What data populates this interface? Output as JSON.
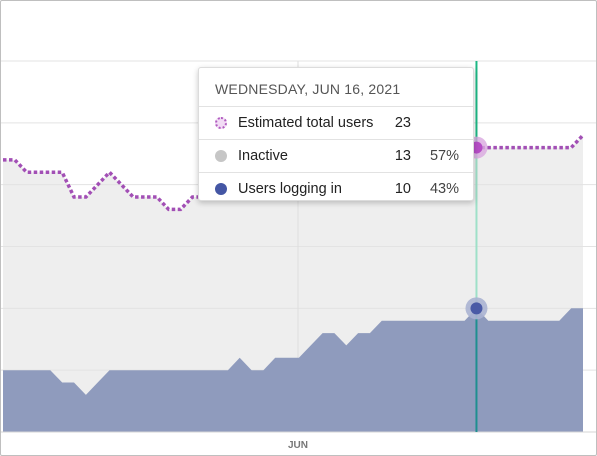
{
  "chart_data": {
    "type": "area",
    "x_tick_labels": [
      "JUN"
    ],
    "ylim": [
      0,
      30
    ],
    "grid": true,
    "series": [
      {
        "name": "Estimated total users",
        "style": "dotted-line",
        "color": "#a24fb5",
        "values": [
          22,
          22,
          21,
          21,
          21,
          21,
          19,
          19,
          20,
          21,
          20,
          19,
          19,
          19,
          18,
          18,
          19,
          19,
          20,
          20,
          20,
          20,
          20,
          20,
          21,
          21,
          21,
          21,
          22,
          22,
          22,
          22,
          22,
          22,
          22,
          22,
          22,
          22,
          22,
          22,
          23,
          23,
          23,
          23,
          23,
          23,
          23,
          23,
          23,
          24
        ]
      },
      {
        "name": "Users logging in",
        "style": "area",
        "color": "#8f9bbd",
        "values": [
          5,
          5,
          5,
          5,
          5,
          4,
          4,
          3,
          4,
          5,
          5,
          5,
          5,
          5,
          5,
          5,
          5,
          5,
          5,
          5,
          6,
          5,
          5,
          6,
          6,
          6,
          7,
          8,
          8,
          7,
          8,
          8,
          9,
          9,
          9,
          9,
          9,
          9,
          9,
          9,
          10,
          9,
          9,
          9,
          9,
          9,
          9,
          9,
          10,
          10
        ]
      }
    ],
    "crosshair_index": 40,
    "crosshair_color": "#1db885"
  },
  "tooltip": {
    "date": "WEDNESDAY, JUN 16, 2021",
    "rows": [
      {
        "label": "Estimated total users",
        "value": "23",
        "pct": "",
        "marker_color": "#b15cc0",
        "marker_style": "dotted"
      },
      {
        "label": "Inactive",
        "value": "13",
        "pct": "57%",
        "marker_color": "#c6c6c6",
        "marker_style": "solid"
      },
      {
        "label": "Users logging in",
        "value": "10",
        "pct": "43%",
        "marker_color": "#4456a4",
        "marker_style": "solid"
      }
    ]
  }
}
